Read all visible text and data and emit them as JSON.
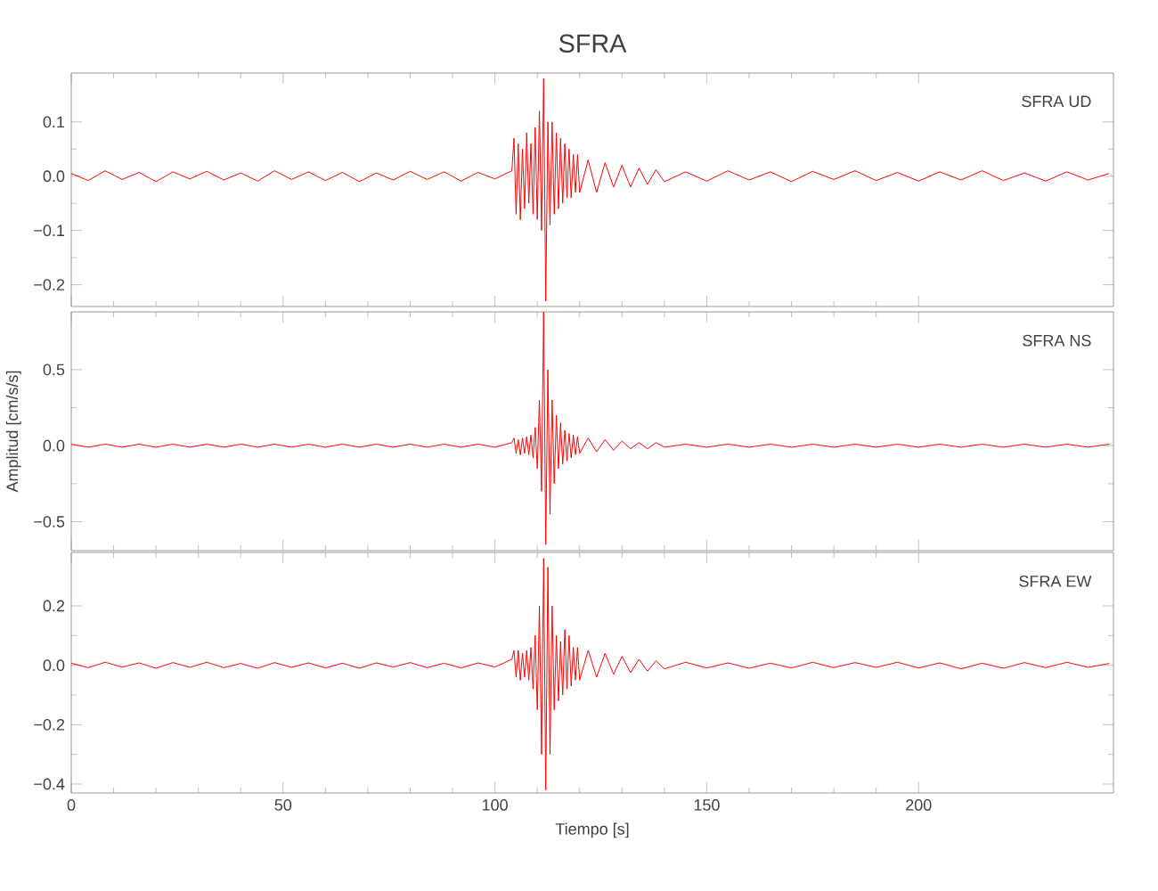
{
  "chart_data": [
    {
      "type": "line",
      "title": "SFRA",
      "annotations": [
        "SFRA UD"
      ],
      "tick_labels": "y",
      "color": "#ff0000",
      "xlim": [
        0,
        246
      ],
      "ylim": [
        -0.24,
        0.19
      ],
      "xticks": [
        0,
        50,
        100,
        150,
        200
      ],
      "yticks": [
        {
          "value": 0.1,
          "label": "0.1"
        },
        {
          "value": 0,
          "label": "0.0"
        },
        {
          "value": -0.1,
          "label": "−0.1"
        },
        {
          "value": -0.2,
          "label": "−0.2"
        }
      ],
      "x": [
        0,
        4,
        8,
        12,
        16,
        20,
        24,
        28,
        32,
        36,
        40,
        44,
        48,
        52,
        56,
        60,
        64,
        68,
        72,
        76,
        80,
        84,
        88,
        92,
        96,
        100,
        104,
        104.5,
        105,
        105.5,
        106,
        106.5,
        107,
        107.5,
        108,
        108.5,
        109,
        109.5,
        110,
        110.5,
        111,
        111.5,
        112,
        112.5,
        113,
        113.5,
        114,
        114.5,
        115,
        115.5,
        116,
        116.5,
        117,
        117.5,
        118,
        118.5,
        119,
        119.5,
        120,
        122,
        124,
        126,
        128,
        130,
        132,
        134,
        136,
        138,
        140,
        145,
        150,
        155,
        160,
        165,
        170,
        175,
        180,
        185,
        190,
        195,
        200,
        205,
        210,
        215,
        220,
        225,
        230,
        235,
        240,
        245
      ],
      "values": [
        0.005,
        -0.008,
        0.01,
        -0.006,
        0.007,
        -0.01,
        0.008,
        -0.005,
        0.009,
        -0.007,
        0.006,
        -0.009,
        0.01,
        -0.006,
        0.008,
        -0.008,
        0.007,
        -0.01,
        0.006,
        -0.007,
        0.009,
        -0.006,
        0.008,
        -0.009,
        0.007,
        -0.005,
        0.01,
        0.07,
        -0.07,
        0.06,
        -0.08,
        0.05,
        -0.06,
        0.08,
        -0.05,
        0.06,
        -0.07,
        0.09,
        -0.08,
        0.12,
        -0.1,
        0.18,
        -0.23,
        0.1,
        -0.09,
        0.1,
        -0.07,
        0.08,
        -0.06,
        0.07,
        -0.05,
        0.06,
        -0.04,
        0.05,
        -0.04,
        0.04,
        -0.03,
        0.04,
        -0.03,
        0.03,
        -0.03,
        0.025,
        -0.02,
        0.02,
        -0.02,
        0.015,
        -0.015,
        0.012,
        -0.01,
        0.008,
        -0.009,
        0.01,
        -0.007,
        0.008,
        -0.01,
        0.009,
        -0.006,
        0.01,
        -0.008,
        0.007,
        -0.009,
        0.008,
        -0.007,
        0.01,
        -0.008,
        0.006,
        -0.009,
        0.008,
        -0.007,
        0.005
      ]
    },
    {
      "type": "line",
      "ylabel": "Amplitud [cm/s/s]",
      "annotations": [
        "SFRA NS"
      ],
      "tick_labels": "y",
      "color": "#ff0000",
      "xlim": [
        0,
        246
      ],
      "ylim": [
        -0.69,
        0.88
      ],
      "xticks": [
        0,
        50,
        100,
        150,
        200
      ],
      "yticks": [
        {
          "value": 0.5,
          "label": "0.5"
        },
        {
          "value": 0,
          "label": "0.0"
        },
        {
          "value": -0.5,
          "label": "−0.5"
        }
      ],
      "x": [
        0,
        4,
        8,
        12,
        16,
        20,
        24,
        28,
        32,
        36,
        40,
        44,
        48,
        52,
        56,
        60,
        64,
        68,
        72,
        76,
        80,
        84,
        88,
        92,
        96,
        100,
        104,
        104.5,
        105,
        105.5,
        106,
        106.5,
        107,
        107.5,
        108,
        108.5,
        109,
        109.5,
        110,
        110.5,
        111,
        111.5,
        112,
        112.5,
        113,
        113.5,
        114,
        114.5,
        115,
        115.5,
        116,
        116.5,
        117,
        117.5,
        118,
        118.5,
        119,
        119.5,
        120,
        122,
        124,
        126,
        128,
        130,
        132,
        134,
        136,
        138,
        140,
        145,
        150,
        155,
        160,
        165,
        170,
        175,
        180,
        185,
        190,
        195,
        200,
        205,
        210,
        215,
        220,
        225,
        230,
        235,
        240,
        245
      ],
      "values": [
        0.01,
        -0.01,
        0.01,
        -0.01,
        0.01,
        -0.01,
        0.01,
        -0.01,
        0.01,
        -0.01,
        0.01,
        -0.01,
        0.01,
        -0.01,
        0.01,
        -0.01,
        0.01,
        -0.01,
        0.01,
        -0.01,
        0.01,
        -0.01,
        0.01,
        -0.01,
        0.01,
        -0.01,
        0.02,
        0.05,
        -0.05,
        0.04,
        -0.06,
        0.05,
        -0.05,
        0.06,
        -0.06,
        0.07,
        -0.08,
        0.12,
        -0.15,
        0.3,
        -0.3,
        0.88,
        -0.65,
        0.5,
        -0.45,
        0.3,
        -0.25,
        0.2,
        -0.15,
        0.15,
        -0.12,
        0.1,
        -0.1,
        0.08,
        -0.08,
        0.07,
        -0.06,
        0.06,
        -0.05,
        0.05,
        -0.04,
        0.04,
        -0.03,
        0.03,
        -0.02,
        0.02,
        -0.02,
        0.02,
        -0.01,
        0.01,
        -0.01,
        0.01,
        -0.01,
        0.01,
        -0.01,
        0.01,
        -0.01,
        0.01,
        -0.01,
        0.01,
        -0.01,
        0.01,
        -0.01,
        0.01,
        -0.01,
        0.01,
        -0.01,
        0.01,
        -0.01,
        0.01
      ]
    },
    {
      "type": "line",
      "xlabel": "Tiempo [s]",
      "annotations": [
        "SFRA EW"
      ],
      "color": "#ff0000",
      "xlim": [
        0,
        246
      ],
      "ylim": [
        -0.43,
        0.38
      ],
      "xticks": [
        0,
        50,
        100,
        150,
        200
      ],
      "yticks": [
        {
          "value": 0.2,
          "label": "0.2"
        },
        {
          "value": 0,
          "label": "0.0"
        },
        {
          "value": -0.2,
          "label": "−0.2"
        },
        {
          "value": -0.4,
          "label": "−0.4"
        }
      ],
      "x": [
        0,
        4,
        8,
        12,
        16,
        20,
        24,
        28,
        32,
        36,
        40,
        44,
        48,
        52,
        56,
        60,
        64,
        68,
        72,
        76,
        80,
        84,
        88,
        92,
        96,
        100,
        104,
        104.5,
        105,
        105.5,
        106,
        106.5,
        107,
        107.5,
        108,
        108.5,
        109,
        109.5,
        110,
        110.5,
        111,
        111.5,
        112,
        112.5,
        113,
        113.5,
        114,
        114.5,
        115,
        115.5,
        116,
        116.5,
        117,
        117.5,
        118,
        118.5,
        119,
        119.5,
        120,
        122,
        124,
        126,
        128,
        130,
        132,
        134,
        136,
        138,
        140,
        145,
        150,
        155,
        160,
        165,
        170,
        175,
        180,
        185,
        190,
        195,
        200,
        205,
        210,
        215,
        220,
        225,
        230,
        235,
        240,
        245
      ],
      "values": [
        0.007,
        -0.008,
        0.01,
        -0.006,
        0.008,
        -0.01,
        0.009,
        -0.007,
        0.01,
        -0.008,
        0.006,
        -0.01,
        0.009,
        -0.007,
        0.008,
        -0.009,
        0.007,
        -0.01,
        0.008,
        -0.006,
        0.009,
        -0.008,
        0.007,
        -0.009,
        0.008,
        -0.006,
        0.02,
        0.05,
        -0.04,
        0.05,
        -0.05,
        0.04,
        -0.04,
        0.05,
        -0.05,
        0.06,
        -0.08,
        0.1,
        -0.15,
        0.2,
        -0.3,
        0.36,
        -0.42,
        0.33,
        -0.3,
        0.2,
        -0.15,
        0.1,
        -0.12,
        0.08,
        -0.1,
        0.12,
        -0.08,
        0.1,
        -0.07,
        0.06,
        -0.05,
        0.06,
        -0.05,
        0.05,
        -0.04,
        0.04,
        -0.03,
        0.03,
        -0.025,
        0.02,
        -0.02,
        0.015,
        -0.012,
        0.01,
        -0.009,
        0.008,
        -0.01,
        0.007,
        -0.009,
        0.01,
        -0.008,
        0.009,
        -0.007,
        0.01,
        -0.009,
        0.008,
        -0.012,
        0.007,
        -0.01,
        0.009,
        -0.008,
        0.01,
        -0.007,
        0.006
      ]
    }
  ]
}
